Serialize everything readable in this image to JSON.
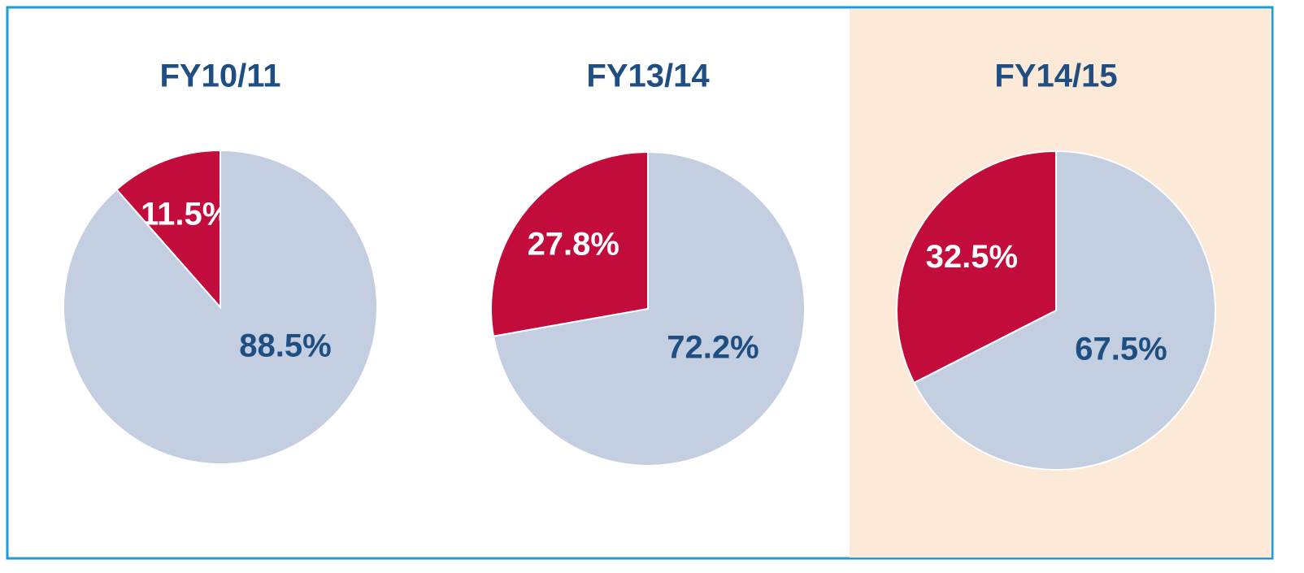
{
  "chart_data": [
    {
      "type": "pie",
      "title": "FY10/11",
      "values": [
        11.5,
        88.5
      ],
      "value_labels": [
        "11.5%",
        "88.5%"
      ],
      "colors": [
        "#c20c3b",
        "#c3cfe1"
      ],
      "label_colors": [
        "#ffffff",
        "#1f4e82"
      ]
    },
    {
      "type": "pie",
      "title": "FY13/14",
      "values": [
        27.8,
        72.2
      ],
      "value_labels": [
        "27.8%",
        "72.2%"
      ],
      "colors": [
        "#c20c3b",
        "#c3cfe1"
      ],
      "label_colors": [
        "#ffffff",
        "#1f4e82"
      ]
    },
    {
      "type": "pie",
      "title": "FY14/15",
      "values": [
        32.5,
        67.5
      ],
      "value_labels": [
        "32.5%",
        "67.5%"
      ],
      "colors": [
        "#c20c3b",
        "#c3cfe1"
      ],
      "label_colors": [
        "#ffffff",
        "#1f4e82"
      ],
      "background": "#fde9d7"
    }
  ]
}
